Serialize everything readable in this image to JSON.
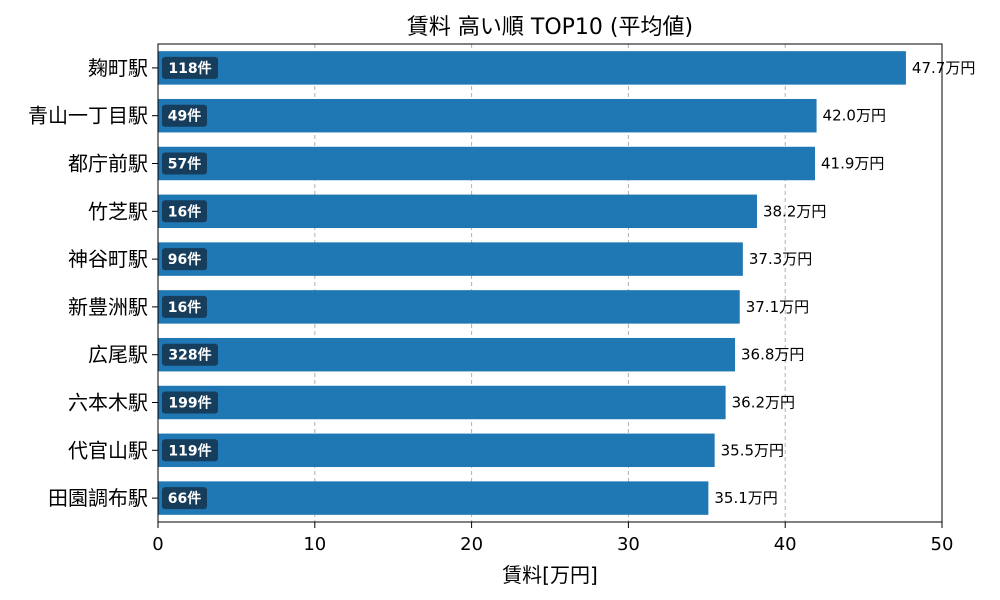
{
  "chart_data": {
    "type": "bar",
    "orientation": "horizontal",
    "title": "賃料 高い順 TOP10 (平均値)",
    "xlabel": "賃料[万円]",
    "ylabel": "",
    "xlim": [
      0,
      50
    ],
    "xticks": [
      0,
      10,
      20,
      30,
      40,
      50
    ],
    "grid": "x-dashed",
    "bar_color": "#1f77b4",
    "badge_color": "#163d5c",
    "categories": [
      "麹町駅",
      "青山一丁目駅",
      "都庁前駅",
      "竹芝駅",
      "神谷町駅",
      "新豊洲駅",
      "広尾駅",
      "六本木駅",
      "代官山駅",
      "田園調布駅"
    ],
    "values": [
      47.7,
      42.0,
      41.9,
      38.2,
      37.3,
      37.1,
      36.8,
      36.2,
      35.5,
      35.1
    ],
    "value_labels": [
      "47.7万円",
      "42.0万円",
      "41.9万円",
      "38.2万円",
      "37.3万円",
      "37.1万円",
      "36.8万円",
      "36.2万円",
      "35.5万円",
      "35.1万円"
    ],
    "counts": [
      "118件",
      "49件",
      "57件",
      "16件",
      "96件",
      "16件",
      "328件",
      "199件",
      "119件",
      "66件"
    ]
  }
}
